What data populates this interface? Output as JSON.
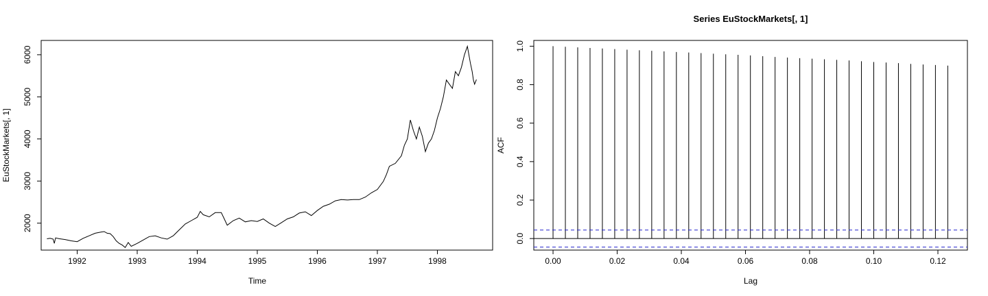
{
  "chart_data": [
    {
      "type": "line",
      "title": "",
      "xlabel": "Time",
      "ylabel": "EuStockMarkets[, 1]",
      "xlim": [
        1991.4,
        1998.92
      ],
      "ylim": [
        1360,
        6340
      ],
      "x_ticks": [
        1992,
        1993,
        1994,
        1995,
        1996,
        1997,
        1998
      ],
      "x_tick_labels": [
        "1992",
        "1993",
        "1994",
        "1995",
        "1996",
        "1997",
        "1998"
      ],
      "y_ticks": [
        2000,
        3000,
        4000,
        5000,
        6000
      ],
      "y_tick_labels": [
        "2000",
        "3000",
        "4000",
        "5000",
        "6000"
      ],
      "grid": false,
      "series": [
        {
          "color": "#000000",
          "x": [
            1991.496,
            1991.55,
            1991.6,
            1991.62,
            1991.64,
            1991.7,
            1991.8,
            1991.9,
            1992.0,
            1992.1,
            1992.2,
            1992.3,
            1992.4,
            1992.45,
            1992.5,
            1992.55,
            1992.6,
            1992.65,
            1992.7,
            1992.75,
            1992.8,
            1992.85,
            1992.9,
            1993.0,
            1993.1,
            1993.2,
            1993.3,
            1993.4,
            1993.5,
            1993.6,
            1993.7,
            1993.8,
            1993.9,
            1994.0,
            1994.05,
            1994.1,
            1994.2,
            1994.3,
            1994.4,
            1994.45,
            1994.5,
            1994.6,
            1994.7,
            1994.8,
            1994.9,
            1995.0,
            1995.1,
            1995.2,
            1995.3,
            1995.4,
            1995.5,
            1995.6,
            1995.7,
            1995.8,
            1995.9,
            1996.0,
            1996.1,
            1996.2,
            1996.3,
            1996.4,
            1996.5,
            1996.6,
            1996.7,
            1996.8,
            1996.9,
            1997.0,
            1997.1,
            1997.15,
            1997.2,
            1997.3,
            1997.4,
            1997.45,
            1997.5,
            1997.55,
            1997.6,
            1997.65,
            1997.7,
            1997.75,
            1997.8,
            1997.85,
            1997.9,
            1997.95,
            1998.0,
            1998.05,
            1998.1,
            1998.15,
            1998.2,
            1998.25,
            1998.3,
            1998.35,
            1998.4,
            1998.45,
            1998.5,
            1998.55,
            1998.58,
            1998.6,
            1998.62,
            1998.65
          ],
          "y": [
            1628,
            1640,
            1620,
            1520,
            1650,
            1630,
            1610,
            1580,
            1560,
            1640,
            1700,
            1760,
            1790,
            1800,
            1760,
            1750,
            1680,
            1580,
            1520,
            1480,
            1420,
            1540,
            1450,
            1520,
            1600,
            1680,
            1700,
            1650,
            1620,
            1700,
            1840,
            1980,
            2060,
            2140,
            2280,
            2200,
            2150,
            2250,
            2250,
            2100,
            1950,
            2060,
            2120,
            2030,
            2060,
            2040,
            2100,
            2000,
            1920,
            2010,
            2100,
            2150,
            2240,
            2270,
            2180,
            2300,
            2400,
            2450,
            2530,
            2560,
            2550,
            2560,
            2560,
            2620,
            2720,
            2800,
            2990,
            3150,
            3350,
            3420,
            3600,
            3850,
            4000,
            4450,
            4200,
            4000,
            4280,
            4060,
            3700,
            3900,
            4000,
            4200,
            4500,
            4720,
            5000,
            5400,
            5300,
            5200,
            5600,
            5500,
            5700,
            6000,
            6200,
            5800,
            5600,
            5400,
            5300,
            5410
          ]
        }
      ]
    },
    {
      "type": "bar",
      "title": "Series  EuStockMarkets[, 1]",
      "xlabel": "Lag",
      "ylabel": "ACF",
      "xlim": [
        -0.006,
        0.1292
      ],
      "ylim": [
        -0.06,
        1.03
      ],
      "x_ticks": [
        0.0,
        0.02,
        0.04,
        0.06,
        0.08,
        0.1,
        0.12
      ],
      "x_tick_labels": [
        "0.00",
        "0.02",
        "0.04",
        "0.06",
        "0.08",
        "0.10",
        "0.12"
      ],
      "y_ticks": [
        0.0,
        0.2,
        0.4,
        0.6,
        0.8,
        1.0
      ],
      "y_tick_labels": [
        "0.0",
        "0.2",
        "0.4",
        "0.6",
        "0.8",
        "1.0"
      ],
      "grid": false,
      "lags": [
        0.0,
        0.003846,
        0.007692,
        0.011538,
        0.015385,
        0.019231,
        0.023077,
        0.026923,
        0.030769,
        0.034615,
        0.038462,
        0.042308,
        0.046154,
        0.05,
        0.053846,
        0.057692,
        0.061538,
        0.065385,
        0.069231,
        0.073077,
        0.076923,
        0.080769,
        0.084615,
        0.088462,
        0.092308,
        0.096154,
        0.1,
        0.103846,
        0.107692,
        0.111538,
        0.115385,
        0.119231,
        0.123077
      ],
      "acf": [
        1.0,
        0.997,
        0.994,
        0.991,
        0.988,
        0.985,
        0.982,
        0.979,
        0.976,
        0.973,
        0.97,
        0.967,
        0.964,
        0.961,
        0.958,
        0.955,
        0.952,
        0.948,
        0.944,
        0.941,
        0.938,
        0.935,
        0.932,
        0.929,
        0.926,
        0.922,
        0.918,
        0.915,
        0.912,
        0.908,
        0.905,
        0.902,
        0.899
      ],
      "confidence_bound": 0.0443,
      "confidence_color": "#2222cc",
      "zero_line": 0
    }
  ]
}
